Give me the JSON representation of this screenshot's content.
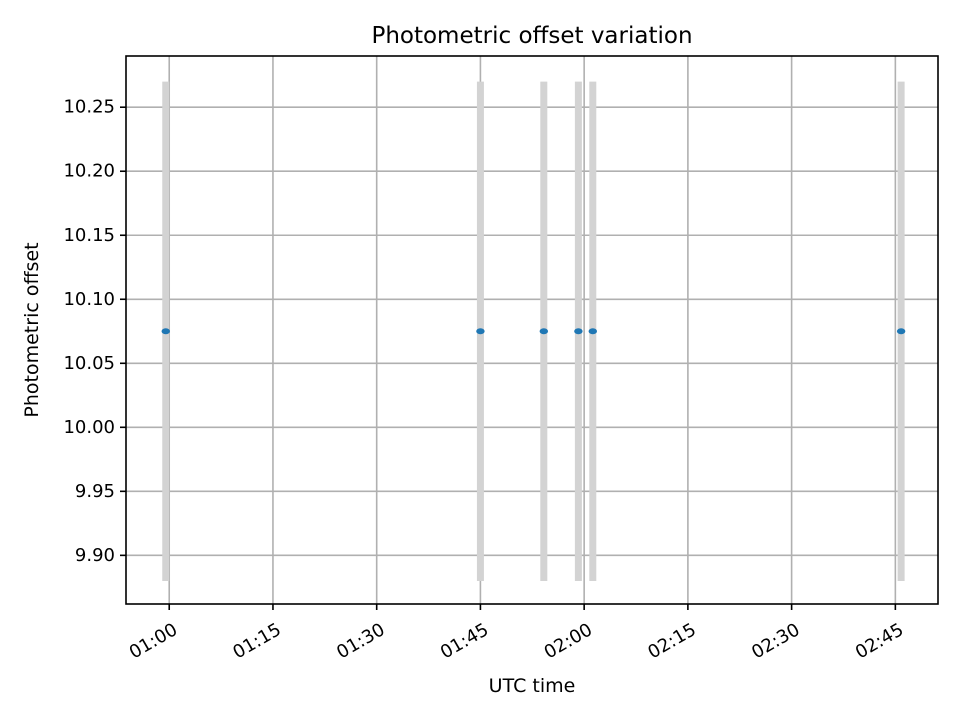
{
  "chart_data": {
    "type": "scatter",
    "title": "Photometric offset variation",
    "xlabel": "UTC time",
    "ylabel": "Photometric offset",
    "xlim": [
      "00:53:45",
      "02:51:10"
    ],
    "ylim": [
      9.862,
      10.29
    ],
    "xticks": [
      "01:00",
      "01:15",
      "01:30",
      "01:45",
      "02:00",
      "02:15",
      "02:30",
      "02:45"
    ],
    "yticks": [
      "9.90",
      "9.95",
      "10.00",
      "10.05",
      "10.10",
      "10.15",
      "10.20",
      "10.25"
    ],
    "grid": true,
    "series": [
      {
        "points": [
          {
            "x": "00:59:30",
            "y": 10.075,
            "error_low": 9.88,
            "error_high": 10.27
          },
          {
            "x": "01:45:00",
            "y": 10.075,
            "error_low": 9.88,
            "error_high": 10.27
          },
          {
            "x": "01:54:10",
            "y": 10.075,
            "error_low": 9.88,
            "error_high": 10.27
          },
          {
            "x": "01:59:10",
            "y": 10.075,
            "error_low": 9.88,
            "error_high": 10.27
          },
          {
            "x": "02:01:15",
            "y": 10.075,
            "error_low": 9.88,
            "error_high": 10.27
          },
          {
            "x": "02:45:50",
            "y": 10.075,
            "error_low": 9.88,
            "error_high": 10.27
          }
        ]
      }
    ],
    "colors": {
      "marker": "#1f77b4",
      "errorbar": "#d3d3d3",
      "grid": "#b0b0b0"
    }
  }
}
